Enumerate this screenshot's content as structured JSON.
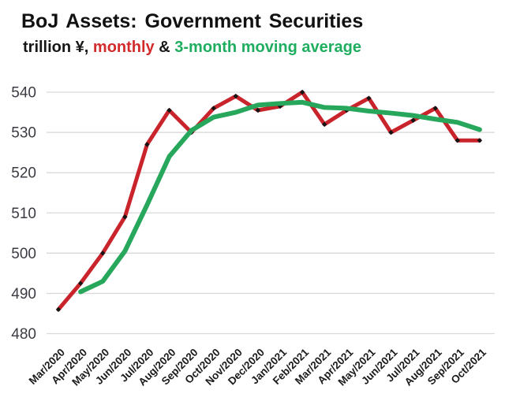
{
  "header": {
    "title": "BoJ Assets: Government Securities",
    "subtitle_prefix": "trillion ¥,",
    "subtitle_monthly": "monthly",
    "subtitle_amp": "&",
    "subtitle_ma": "3-month moving average"
  },
  "chart_data": {
    "type": "line",
    "title": "BoJ Assets: Government Securities",
    "subtitle": "trillion ¥, monthly & 3-month moving average",
    "categories": [
      "Mar/2020",
      "Apr/2020",
      "May/2020",
      "Jun/2020",
      "Jul/2020",
      "Aug/2020",
      "Sep/2020",
      "Oct/2020",
      "Nov/2020",
      "Dec/2020",
      "Jan/2021",
      "Feb/2021",
      "Mar/2021",
      "Apr/2021",
      "May/2021",
      "Jun/2021",
      "Jul/2021",
      "Aug/2021",
      "Sep/2021",
      "Oct/2021"
    ],
    "series": [
      {
        "name": "monthly",
        "color": "#c9242b",
        "marker": "black-diamond",
        "values": [
          486,
          492.5,
          500,
          509,
          527,
          535.5,
          530,
          536,
          539,
          535.5,
          536.5,
          540,
          532,
          535.5,
          538.5,
          530,
          533,
          536,
          528,
          528
        ]
      },
      {
        "name": "3-month moving average",
        "color": "#27a75c",
        "marker": "none",
        "values": [
          null,
          490.4,
          493,
          500.5,
          512,
          524,
          530.5,
          533.8,
          535,
          536.8,
          537.2,
          537.5,
          536.2,
          536,
          535.3,
          534.8,
          534.2,
          533.3,
          532.5,
          530.7
        ]
      }
    ],
    "ylabel": "trillion yen",
    "xlabel": "",
    "ylim": [
      480,
      545
    ],
    "yticks": [
      480,
      490,
      500,
      510,
      520,
      530,
      540
    ],
    "grid": "horizontal",
    "legend": "encoded-in-subtitle-colors"
  },
  "colors": {
    "background": "#ffffff",
    "gridline": "#d9d9d9",
    "y_tick_label": "#3b3b44",
    "x_tick_label": "#1b1b1b",
    "marker": "#141414",
    "monthly_line": "#c9242b",
    "ma_line": "#27a75c"
  }
}
